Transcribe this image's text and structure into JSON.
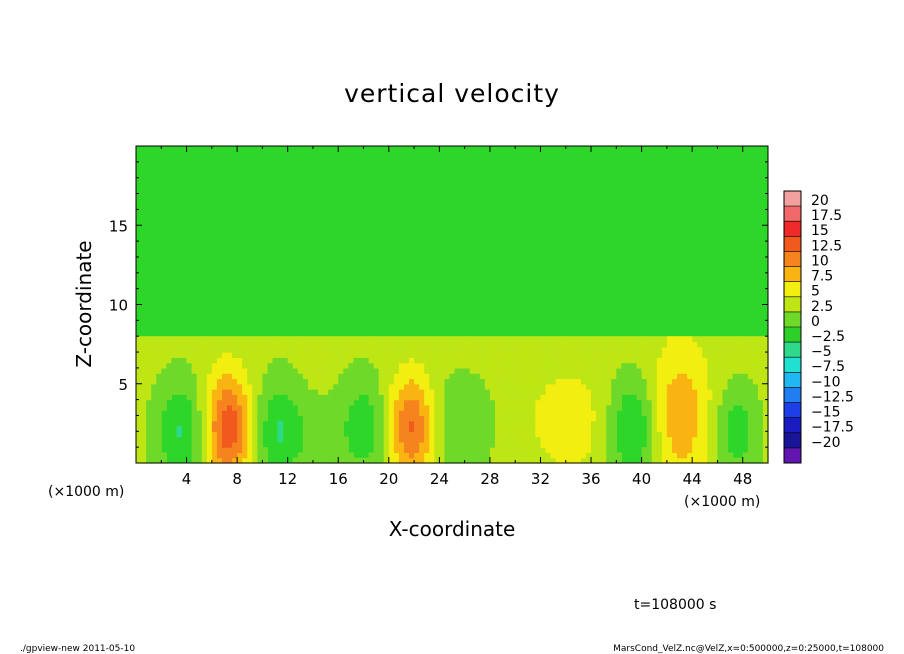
{
  "chart_data": {
    "type": "heatmap",
    "title": "vertical velocity",
    "xlabel": "X-coordinate",
    "ylabel": "Z-coordinate",
    "x_unit_left": "(×1000 m)",
    "x_unit_right": "(×1000 m)",
    "xlim": [
      0,
      50
    ],
    "ylim": [
      0,
      20
    ],
    "x_ticks": [
      "4",
      "8",
      "12",
      "16",
      "20",
      "24",
      "28",
      "32",
      "36",
      "40",
      "44",
      "48"
    ],
    "y_ticks": [
      "5",
      "10",
      "15"
    ],
    "colorbar": {
      "labels": [
        "20",
        "17.5",
        "15",
        "12.5",
        "10",
        "7.5",
        "5",
        "2.5",
        "0",
        "−2.5",
        "−5",
        "−7.5",
        "−10",
        "−12.5",
        "−15",
        "−17.5",
        "−20"
      ],
      "colors": [
        "#f3a0a0",
        "#f06a6a",
        "#ee2a2a",
        "#f15a1c",
        "#f5841e",
        "#f9b412",
        "#f2ee10",
        "#bde614",
        "#6fd92a",
        "#2fcf2a",
        "#2fd98a",
        "#22e0d0",
        "#21b7f3",
        "#217ef0",
        "#1e3ee8",
        "#1a1cbf",
        "#1a1498",
        "#6216b0"
      ]
    },
    "features": [
      {
        "x": 7.3,
        "z": 2.3,
        "value": 11,
        "sx": 1.3,
        "sz": 2.4
      },
      {
        "x": 21.8,
        "z": 2.3,
        "value": 10,
        "sx": 1.3,
        "sz": 2.3
      },
      {
        "x": 43.0,
        "z": 3.0,
        "value": 6,
        "sx": 1.8,
        "sz": 3.2
      },
      {
        "x": 34.3,
        "z": 2.7,
        "value": 3,
        "sx": 2.6,
        "sz": 2.6
      },
      {
        "x": 3.5,
        "z": 2.0,
        "value": -6,
        "sx": 1.4,
        "sz": 2.3
      },
      {
        "x": 11.3,
        "z": 2.0,
        "value": -6,
        "sx": 1.4,
        "sz": 2.3
      },
      {
        "x": 18.0,
        "z": 2.3,
        "value": -5,
        "sx": 1.4,
        "sz": 2.3
      },
      {
        "x": 39.3,
        "z": 2.2,
        "value": -7,
        "sx": 1.4,
        "sz": 2.3
      },
      {
        "x": 25.5,
        "z": 2.5,
        "value": -3,
        "sx": 2.0,
        "sz": 2.2
      },
      {
        "x": 47.5,
        "z": 2.0,
        "value": -5,
        "sx": 1.2,
        "sz": 2.0
      },
      {
        "x": 14.5,
        "z": 1.7,
        "value": -2,
        "sx": 1.2,
        "sz": 1.5
      }
    ]
  },
  "annotations": {
    "time": "t=108000 s",
    "footer_left": "./gpview-new   2011-05-10",
    "footer_right": "MarsCond_VelZ.nc@VelZ,x=0:500000,z=0:25000,t=108000"
  }
}
